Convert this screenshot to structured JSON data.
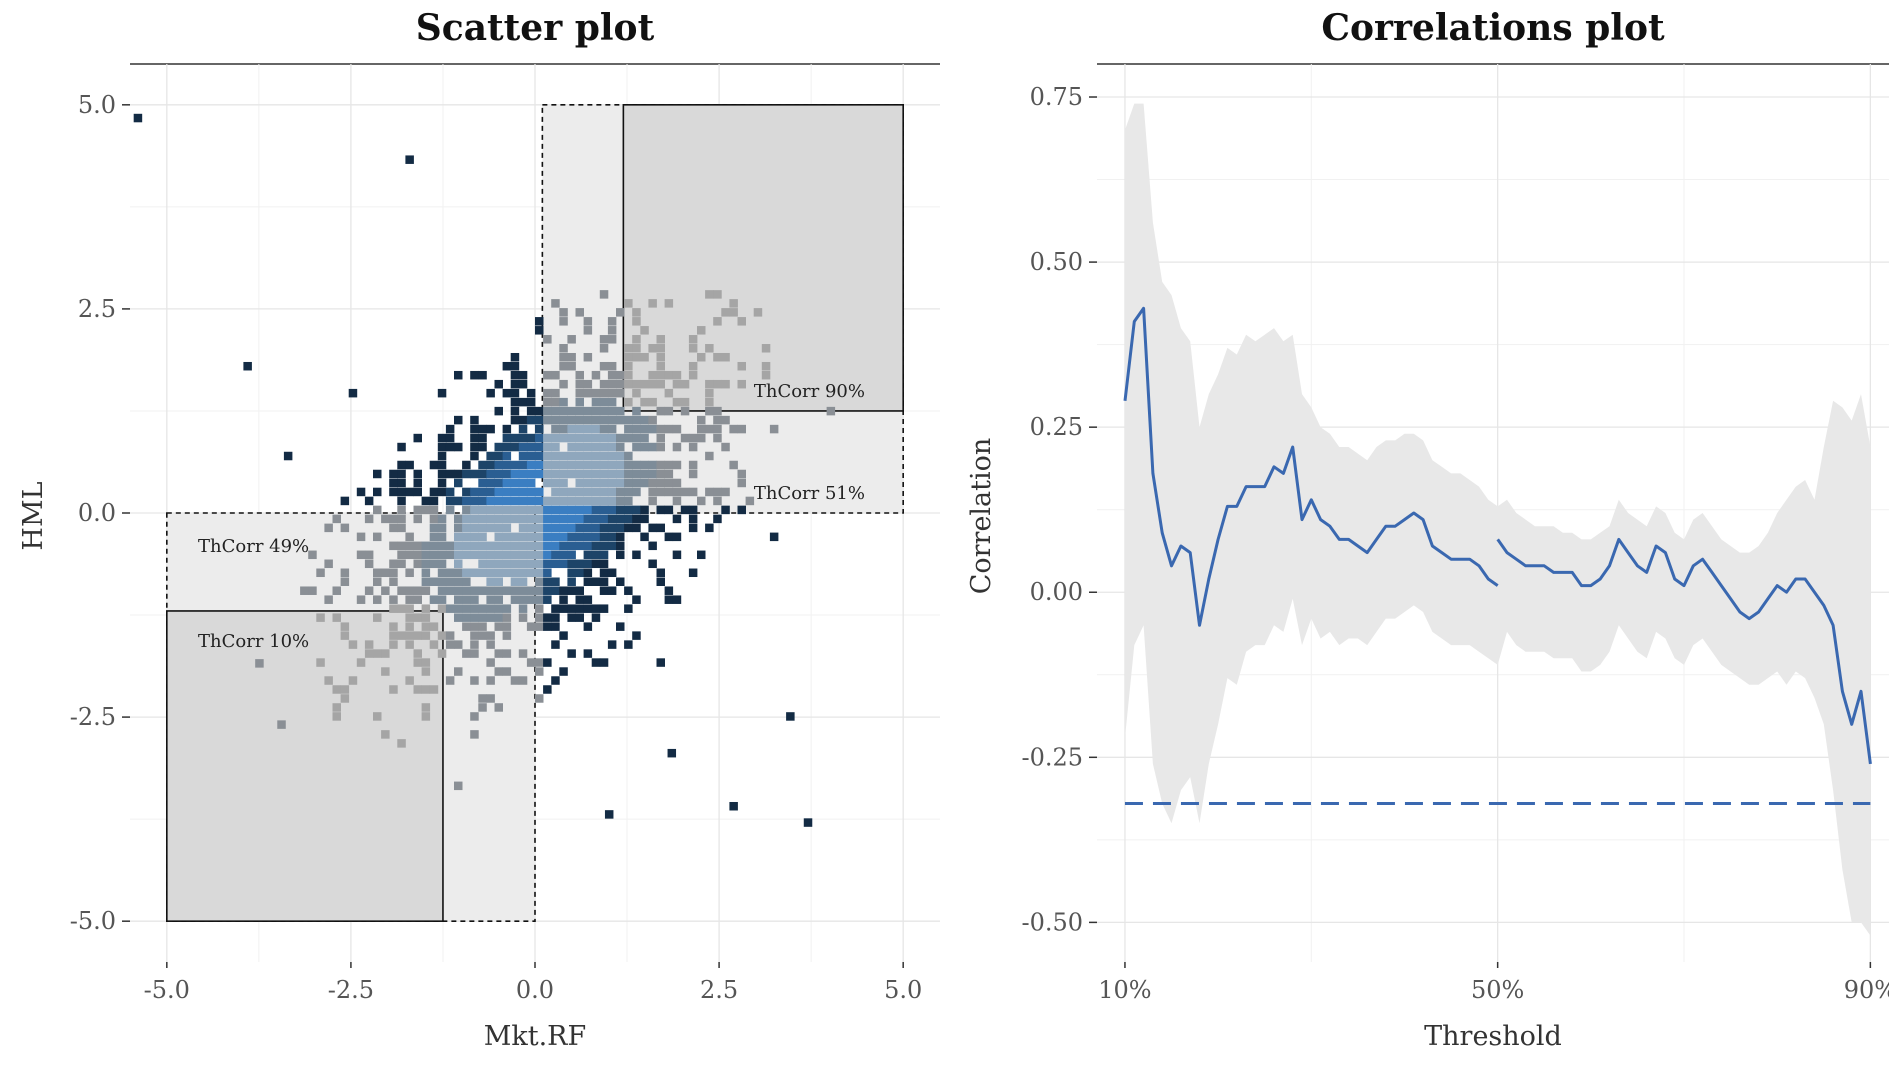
{
  "chart_data": [
    {
      "type": "heatmap",
      "title": "Scatter plot",
      "xlabel": "Mkt.RF",
      "ylabel": "HML",
      "xlim": [
        -5.5,
        5.5
      ],
      "ylim": [
        -5.5,
        5.5
      ],
      "xticks": [
        -5.0,
        -2.5,
        0.0,
        2.5,
        5.0
      ],
      "xtick_labels": [
        "-5.0",
        "-2.5",
        "0.0",
        "2.5",
        "5.0"
      ],
      "yticks": [
        -5.0,
        -2.5,
        0.0,
        2.5,
        5.0
      ],
      "ytick_labels": [
        "-5.0",
        "-2.5",
        "0.0",
        "2.5",
        "5.0"
      ],
      "grid": true,
      "regions": [
        {
          "label": "ThCorr 90%",
          "x": [
            1.2,
            5.0
          ],
          "y": [
            1.25,
            5.0
          ],
          "style": "solid"
        },
        {
          "label": "ThCorr 51%",
          "x": [
            0.1,
            5.0
          ],
          "y": [
            0.0,
            5.0
          ],
          "style": "dashed"
        },
        {
          "label": "ThCorr 49%",
          "x": [
            -5.0,
            0.0
          ],
          "y": [
            -5.0,
            0.0
          ],
          "style": "dashed"
        },
        {
          "label": "ThCorr 10%",
          "x": [
            -5.0,
            -1.25
          ],
          "y": [
            -5.0,
            -1.2
          ],
          "style": "solid"
        }
      ],
      "outliers": [
        [
          -5.45,
          4.78
        ],
        [
          3.65,
          -3.85
        ],
        [
          -3.5,
          -2.65
        ],
        [
          -3.8,
          -1.9
        ],
        [
          -1.1,
          -3.4
        ],
        [
          0.95,
          -3.75
        ],
        [
          1.8,
          -3.0
        ]
      ]
    },
    {
      "type": "line",
      "title": "Correlations plot",
      "xlabel": "Threshold",
      "ylabel": "Correlation",
      "xlim": [
        7,
        92
      ],
      "ylim": [
        -0.56,
        0.8
      ],
      "xticks": [
        10,
        50,
        90
      ],
      "xtick_labels": [
        "10%",
        "50%",
        "90%"
      ],
      "yticks": [
        0.75,
        0.5,
        0.25,
        0.0,
        -0.25,
        -0.5
      ],
      "ytick_labels": [
        "0.75",
        "0.50",
        "0.25",
        "0.00",
        "-0.25",
        "-0.50"
      ],
      "grid": true,
      "reference_line": -0.32,
      "series": [
        {
          "x": [
            10,
            11,
            12,
            13,
            14,
            15,
            16,
            17,
            18,
            19,
            20,
            21,
            22,
            23,
            24,
            25,
            26,
            27,
            28,
            29,
            30,
            31,
            32,
            33,
            34,
            35,
            36,
            37,
            38,
            39,
            40,
            41,
            42,
            43,
            44,
            45,
            46,
            47,
            48,
            49,
            50
          ],
          "y": [
            0.29,
            0.41,
            0.43,
            0.18,
            0.09,
            0.04,
            0.07,
            0.06,
            -0.05,
            0.02,
            0.08,
            0.13,
            0.13,
            0.16,
            0.16,
            0.16,
            0.19,
            0.18,
            0.22,
            0.11,
            0.14,
            0.11,
            0.1,
            0.08,
            0.08,
            0.07,
            0.06,
            0.08,
            0.1,
            0.1,
            0.11,
            0.12,
            0.11,
            0.07,
            0.06,
            0.05,
            0.05,
            0.05,
            0.04,
            0.02,
            0.01
          ]
        },
        {
          "x": [
            50,
            51,
            52,
            53,
            54,
            55,
            56,
            57,
            58,
            59,
            60,
            61,
            62,
            63,
            64,
            65,
            66,
            67,
            68,
            69,
            70,
            71,
            72,
            73,
            74,
            75,
            76,
            77,
            78,
            79,
            80,
            81,
            82,
            83,
            84,
            85,
            86,
            87,
            88,
            89,
            90
          ],
          "y": [
            0.08,
            0.06,
            0.05,
            0.04,
            0.04,
            0.04,
            0.03,
            0.03,
            0.03,
            0.01,
            0.01,
            0.02,
            0.04,
            0.08,
            0.06,
            0.04,
            0.03,
            0.07,
            0.06,
            0.02,
            0.01,
            0.04,
            0.05,
            0.03,
            0.01,
            -0.01,
            -0.03,
            -0.04,
            -0.03,
            -0.01,
            0.01,
            0.0,
            0.02,
            0.02,
            0.0,
            -0.02,
            -0.05,
            -0.15,
            -0.2,
            -0.15,
            -0.26
          ]
        }
      ],
      "band_upper": [
        0.7,
        0.74,
        0.74,
        0.56,
        0.47,
        0.45,
        0.4,
        0.38,
        0.25,
        0.3,
        0.33,
        0.37,
        0.36,
        0.39,
        0.38,
        0.39,
        0.4,
        0.38,
        0.39,
        0.3,
        0.28,
        0.25,
        0.24,
        0.22,
        0.22,
        0.21,
        0.2,
        0.22,
        0.23,
        0.23,
        0.24,
        0.24,
        0.23,
        0.2,
        0.19,
        0.18,
        0.18,
        0.17,
        0.16,
        0.14,
        0.13,
        0.14,
        0.12,
        0.11,
        0.1,
        0.1,
        0.1,
        0.09,
        0.09,
        0.08,
        0.08,
        0.09,
        0.1,
        0.14,
        0.12,
        0.11,
        0.1,
        0.13,
        0.12,
        0.09,
        0.08,
        0.11,
        0.12,
        0.1,
        0.08,
        0.07,
        0.06,
        0.06,
        0.07,
        0.09,
        0.12,
        0.14,
        0.16,
        0.17,
        0.14,
        0.22,
        0.29,
        0.28,
        0.26,
        0.3,
        0.22
      ],
      "band_lower": [
        -0.22,
        -0.08,
        -0.05,
        -0.26,
        -0.32,
        -0.35,
        -0.3,
        -0.28,
        -0.35,
        -0.26,
        -0.2,
        -0.13,
        -0.14,
        -0.09,
        -0.08,
        -0.08,
        -0.05,
        -0.06,
        -0.01,
        -0.08,
        -0.04,
        -0.07,
        -0.06,
        -0.08,
        -0.07,
        -0.07,
        -0.08,
        -0.06,
        -0.04,
        -0.04,
        -0.03,
        -0.02,
        -0.03,
        -0.06,
        -0.07,
        -0.08,
        -0.08,
        -0.08,
        -0.09,
        -0.1,
        -0.11,
        -0.06,
        -0.08,
        -0.09,
        -0.09,
        -0.09,
        -0.1,
        -0.1,
        -0.1,
        -0.12,
        -0.12,
        -0.11,
        -0.09,
        -0.05,
        -0.07,
        -0.09,
        -0.1,
        -0.06,
        -0.07,
        -0.1,
        -0.11,
        -0.08,
        -0.07,
        -0.09,
        -0.11,
        -0.12,
        -0.13,
        -0.14,
        -0.14,
        -0.13,
        -0.12,
        -0.14,
        -0.12,
        -0.13,
        -0.16,
        -0.2,
        -0.3,
        -0.42,
        -0.5,
        -0.5,
        -0.52
      ]
    }
  ]
}
